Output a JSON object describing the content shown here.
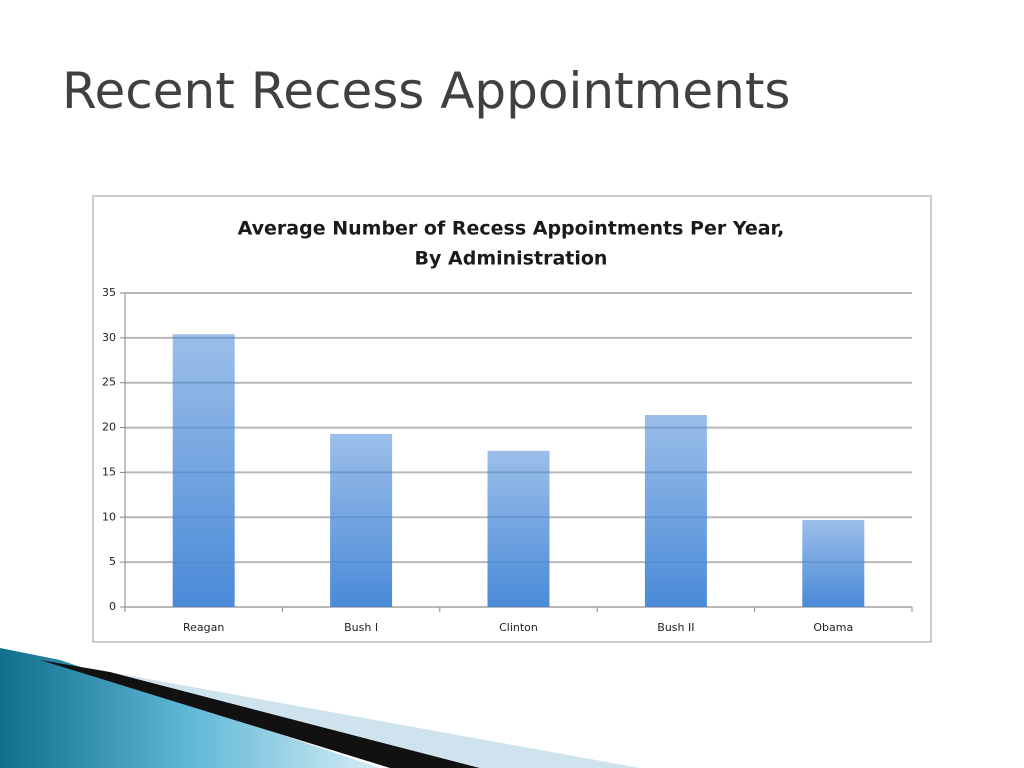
{
  "slide": {
    "title": "Recent Recess Appointments"
  },
  "chart_data": {
    "type": "bar",
    "title": "Average Number of Recess Appointments Per Year,",
    "subtitle": "By Administration",
    "categories": [
      "Reagan",
      "Bush I",
      "Clinton",
      "Bush II",
      "Obama"
    ],
    "values": [
      30.4,
      19.3,
      17.4,
      21.4,
      9.7
    ],
    "color": "#4a8ad8",
    "ylim": [
      0,
      35
    ],
    "yticks": [
      0,
      5,
      10,
      15,
      20,
      25,
      30,
      35
    ],
    "grid": true
  }
}
